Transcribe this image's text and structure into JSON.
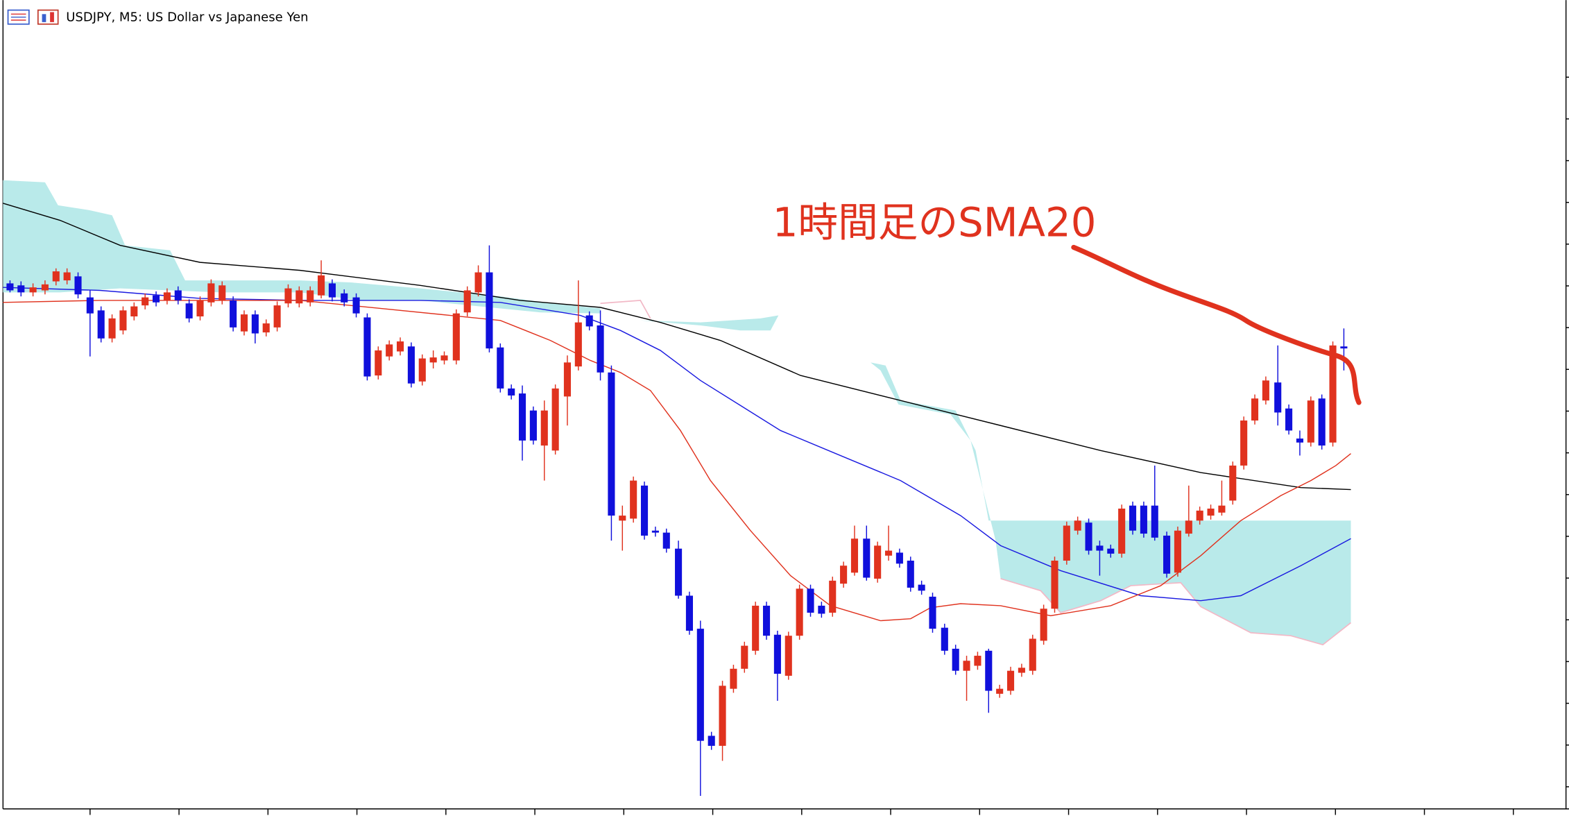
{
  "window": {
    "title": "USDJPY, M5:  US Dollar vs Japanese Yen"
  },
  "annotation": {
    "text": "1時間足のSMA20"
  }
}
